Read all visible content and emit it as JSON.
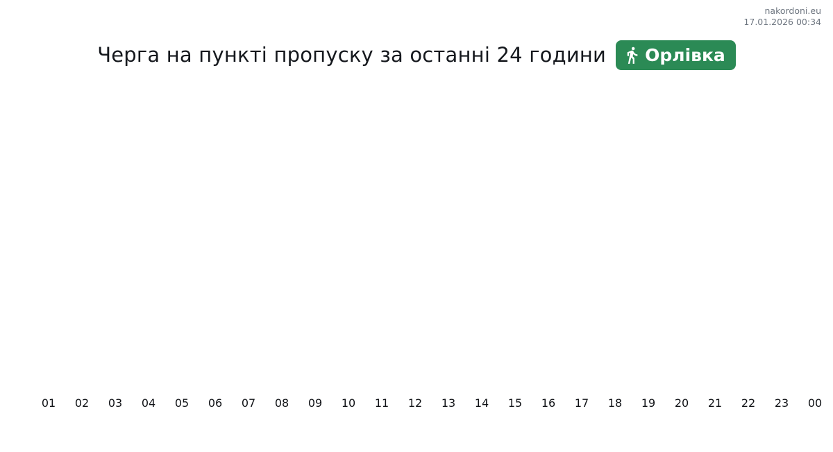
{
  "meta": {
    "site": "nakordoni.eu",
    "timestamp": "17.01.2026 00:34"
  },
  "header": {
    "title": "Черга на пункті пропуску за останні 24 години",
    "badge": {
      "label": "Орлівка",
      "icon": "pedestrian-walk-icon",
      "color": "#2b8a55",
      "text_color": "#ffffff"
    }
  },
  "chart_data": {
    "type": "line",
    "title": "Черга на пункті пропуску за останні 24 години — Орлівка",
    "categories": [
      "01",
      "02",
      "03",
      "04",
      "05",
      "06",
      "07",
      "08",
      "09",
      "10",
      "11",
      "12",
      "13",
      "14",
      "15",
      "16",
      "17",
      "18",
      "19",
      "20",
      "21",
      "22",
      "23",
      "00"
    ],
    "series": [],
    "xlabel": "",
    "ylabel": "",
    "grid": false,
    "legend": false,
    "plot_area_empty": true
  }
}
